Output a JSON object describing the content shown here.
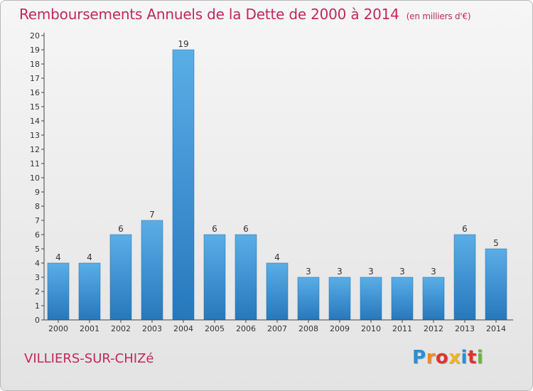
{
  "title": "Remboursements Annuels de la Dette de 2000 à 2014",
  "unit_label": "(en milliers d'€)",
  "commune": "VILLIERS-SUR-CHIZé",
  "logo": {
    "letters": [
      "P",
      "r",
      "o",
      "x",
      "i",
      "t",
      "i"
    ],
    "colors": [
      "#2a8fd6",
      "#f28a1a",
      "#e3322b",
      "#f2b51a",
      "#2a8fd6",
      "#e3322b",
      "#6cb33f"
    ]
  },
  "colors": {
    "title": "#c2275e",
    "bar_light": "#5aaee6",
    "bar_dark": "#2678bd",
    "axis": "#444444"
  },
  "chart_data": {
    "type": "bar",
    "categories": [
      "2000",
      "2001",
      "2002",
      "2003",
      "2004",
      "2005",
      "2006",
      "2007",
      "2008",
      "2009",
      "2010",
      "2011",
      "2012",
      "2013",
      "2014"
    ],
    "values": [
      4,
      4,
      6,
      7,
      19,
      6,
      6,
      4,
      3,
      3,
      3,
      3,
      3,
      6,
      5
    ],
    "ylim": [
      0,
      20
    ],
    "yticks": [
      0,
      1,
      2,
      3,
      4,
      5,
      6,
      7,
      8,
      9,
      10,
      11,
      12,
      13,
      14,
      15,
      16,
      17,
      18,
      19,
      20
    ],
    "grid": false,
    "data_labels": true
  }
}
